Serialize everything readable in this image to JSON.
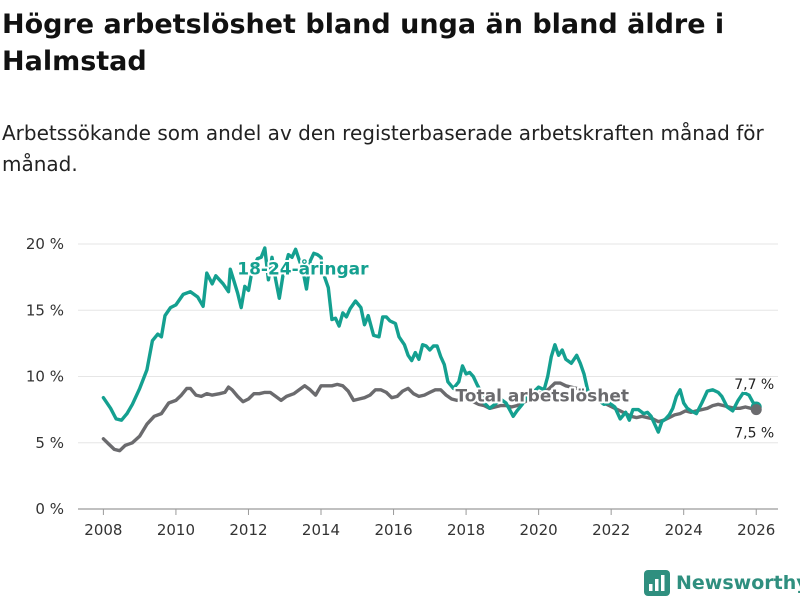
{
  "title": "Högre arbetslöshet bland unga än bland äldre i Halmstad",
  "subtitle": "Arbetssökande som andel av den registerbaserade arbetskraften månad för månad.",
  "brand": {
    "name": "Newsworthy",
    "icon": "bar-chart-logo-icon"
  },
  "colors": {
    "youth": "#14a090",
    "total": "#6b6b6e",
    "brand": "#2f8f7f"
  },
  "chart_data": {
    "type": "line",
    "title": "Högre arbetslöshet bland unga än bland äldre i Halmstad",
    "xlabel": "",
    "ylabel": "",
    "xlim": [
      2007.3,
      2026.6
    ],
    "ylim": [
      0,
      20
    ],
    "x_ticks": [
      2008,
      2010,
      2012,
      2014,
      2016,
      2018,
      2020,
      2022,
      2024,
      2026
    ],
    "x_tick_labels": [
      "2008",
      "2010",
      "2012",
      "2014",
      "2016",
      "2018",
      "2020",
      "2022",
      "2024",
      "2026"
    ],
    "y_ticks": [
      0,
      5,
      10,
      15,
      20
    ],
    "y_tick_labels": [
      "0 %",
      "5 %",
      "10 %",
      "15 %",
      "20 %"
    ],
    "series": [
      {
        "name": "18-24-åringar",
        "label": "18-24-åringar",
        "color": "#14a090",
        "points": [
          [
            2008.0,
            8.4
          ],
          [
            2008.2,
            7.6
          ],
          [
            2008.35,
            6.8
          ],
          [
            2008.5,
            6.7
          ],
          [
            2008.65,
            7.2
          ],
          [
            2008.8,
            7.9
          ],
          [
            2009.0,
            9.1
          ],
          [
            2009.2,
            10.5
          ],
          [
            2009.35,
            12.7
          ],
          [
            2009.5,
            13.2
          ],
          [
            2009.6,
            13.0
          ],
          [
            2009.7,
            14.6
          ],
          [
            2009.85,
            15.2
          ],
          [
            2010.0,
            15.4
          ],
          [
            2010.2,
            16.2
          ],
          [
            2010.4,
            16.4
          ],
          [
            2010.6,
            16.0
          ],
          [
            2010.75,
            15.3
          ],
          [
            2010.85,
            17.8
          ],
          [
            2011.0,
            17.0
          ],
          [
            2011.1,
            17.6
          ],
          [
            2011.3,
            17.0
          ],
          [
            2011.45,
            16.4
          ],
          [
            2011.5,
            18.1
          ],
          [
            2011.6,
            17.2
          ],
          [
            2011.7,
            16.3
          ],
          [
            2011.8,
            15.2
          ],
          [
            2011.9,
            16.8
          ],
          [
            2012.0,
            16.5
          ],
          [
            2012.1,
            18.0
          ],
          [
            2012.25,
            18.9
          ],
          [
            2012.35,
            19.0
          ],
          [
            2012.45,
            19.7
          ],
          [
            2012.55,
            17.3
          ],
          [
            2012.65,
            19.0
          ],
          [
            2012.75,
            17.3
          ],
          [
            2012.85,
            15.9
          ],
          [
            2012.95,
            17.6
          ],
          [
            2013.1,
            19.2
          ],
          [
            2013.2,
            19.0
          ],
          [
            2013.3,
            19.6
          ],
          [
            2013.4,
            18.8
          ],
          [
            2013.5,
            18.0
          ],
          [
            2013.6,
            16.6
          ],
          [
            2013.7,
            18.7
          ],
          [
            2013.8,
            19.3
          ],
          [
            2013.9,
            19.2
          ],
          [
            2014.0,
            19.0
          ],
          [
            2014.1,
            17.5
          ],
          [
            2014.2,
            16.7
          ],
          [
            2014.3,
            14.3
          ],
          [
            2014.4,
            14.4
          ],
          [
            2014.5,
            13.8
          ],
          [
            2014.6,
            14.8
          ],
          [
            2014.7,
            14.5
          ],
          [
            2014.8,
            15.1
          ],
          [
            2014.95,
            15.7
          ],
          [
            2015.1,
            15.2
          ],
          [
            2015.2,
            13.9
          ],
          [
            2015.3,
            14.6
          ],
          [
            2015.45,
            13.1
          ],
          [
            2015.6,
            13.0
          ],
          [
            2015.7,
            14.5
          ],
          [
            2015.8,
            14.5
          ],
          [
            2015.9,
            14.2
          ],
          [
            2016.05,
            14.0
          ],
          [
            2016.15,
            13.0
          ],
          [
            2016.3,
            12.4
          ],
          [
            2016.4,
            11.6
          ],
          [
            2016.5,
            11.2
          ],
          [
            2016.6,
            11.8
          ],
          [
            2016.7,
            11.3
          ],
          [
            2016.8,
            12.4
          ],
          [
            2016.9,
            12.3
          ],
          [
            2017.0,
            12.0
          ],
          [
            2017.1,
            12.3
          ],
          [
            2017.2,
            12.3
          ],
          [
            2017.3,
            11.5
          ],
          [
            2017.4,
            10.9
          ],
          [
            2017.5,
            9.6
          ],
          [
            2017.65,
            9.1
          ],
          [
            2017.8,
            9.6
          ],
          [
            2017.9,
            10.8
          ],
          [
            2018.0,
            10.2
          ],
          [
            2018.1,
            10.3
          ],
          [
            2018.2,
            10.0
          ],
          [
            2018.3,
            9.4
          ],
          [
            2018.4,
            8.9
          ],
          [
            2018.5,
            8.0
          ],
          [
            2018.65,
            7.6
          ],
          [
            2018.8,
            7.9
          ],
          [
            2018.95,
            8.3
          ],
          [
            2019.1,
            8.0
          ],
          [
            2019.2,
            7.5
          ],
          [
            2019.3,
            7.0
          ],
          [
            2019.4,
            7.4
          ],
          [
            2019.55,
            7.9
          ],
          [
            2019.7,
            8.6
          ],
          [
            2019.85,
            8.8
          ],
          [
            2020.0,
            9.2
          ],
          [
            2020.15,
            9.0
          ],
          [
            2020.25,
            10.0
          ],
          [
            2020.35,
            11.5
          ],
          [
            2020.45,
            12.4
          ],
          [
            2020.55,
            11.6
          ],
          [
            2020.65,
            12.0
          ],
          [
            2020.75,
            11.3
          ],
          [
            2020.9,
            11.0
          ],
          [
            2021.05,
            11.6
          ],
          [
            2021.15,
            11.0
          ],
          [
            2021.25,
            10.2
          ],
          [
            2021.35,
            9.0
          ],
          [
            2021.5,
            8.4
          ],
          [
            2021.65,
            8.2
          ],
          [
            2021.8,
            7.9
          ],
          [
            2021.95,
            8.0
          ],
          [
            2022.1,
            7.7
          ],
          [
            2022.25,
            6.8
          ],
          [
            2022.4,
            7.3
          ],
          [
            2022.5,
            6.7
          ],
          [
            2022.6,
            7.5
          ],
          [
            2022.75,
            7.5
          ],
          [
            2022.9,
            7.2
          ],
          [
            2023.0,
            7.3
          ],
          [
            2023.1,
            7.0
          ],
          [
            2023.2,
            6.4
          ],
          [
            2023.3,
            5.8
          ],
          [
            2023.4,
            6.6
          ],
          [
            2023.5,
            6.8
          ],
          [
            2023.6,
            7.1
          ],
          [
            2023.7,
            7.6
          ],
          [
            2023.8,
            8.5
          ],
          [
            2023.9,
            9.0
          ],
          [
            2024.0,
            8.0
          ],
          [
            2024.1,
            7.6
          ],
          [
            2024.2,
            7.4
          ],
          [
            2024.35,
            7.2
          ],
          [
            2024.5,
            8.0
          ],
          [
            2024.65,
            8.9
          ],
          [
            2024.8,
            9.0
          ],
          [
            2024.95,
            8.8
          ],
          [
            2025.05,
            8.5
          ],
          [
            2025.2,
            7.7
          ],
          [
            2025.35,
            7.4
          ],
          [
            2025.5,
            8.2
          ],
          [
            2025.65,
            8.8
          ],
          [
            2025.8,
            8.6
          ],
          [
            2025.9,
            8.1
          ],
          [
            2026.0,
            7.7
          ]
        ],
        "end_label": "7,7 %",
        "end_value": 7.7
      },
      {
        "name": "Total arbetslöshet",
        "label": "Total arbetslöshet",
        "color": "#6b6b6e",
        "points": [
          [
            2008.0,
            5.3
          ],
          [
            2008.15,
            4.9
          ],
          [
            2008.3,
            4.5
          ],
          [
            2008.45,
            4.4
          ],
          [
            2008.6,
            4.8
          ],
          [
            2008.8,
            5.0
          ],
          [
            2009.0,
            5.5
          ],
          [
            2009.2,
            6.4
          ],
          [
            2009.4,
            7.0
          ],
          [
            2009.6,
            7.2
          ],
          [
            2009.8,
            8.0
          ],
          [
            2010.0,
            8.2
          ],
          [
            2010.15,
            8.6
          ],
          [
            2010.3,
            9.1
          ],
          [
            2010.4,
            9.1
          ],
          [
            2010.55,
            8.6
          ],
          [
            2010.7,
            8.5
          ],
          [
            2010.85,
            8.7
          ],
          [
            2011.0,
            8.6
          ],
          [
            2011.2,
            8.7
          ],
          [
            2011.35,
            8.8
          ],
          [
            2011.45,
            9.2
          ],
          [
            2011.55,
            9.0
          ],
          [
            2011.7,
            8.5
          ],
          [
            2011.85,
            8.1
          ],
          [
            2012.0,
            8.3
          ],
          [
            2012.15,
            8.7
          ],
          [
            2012.3,
            8.7
          ],
          [
            2012.45,
            8.8
          ],
          [
            2012.6,
            8.8
          ],
          [
            2012.75,
            8.5
          ],
          [
            2012.9,
            8.2
          ],
          [
            2013.05,
            8.5
          ],
          [
            2013.25,
            8.7
          ],
          [
            2013.4,
            9.0
          ],
          [
            2013.55,
            9.3
          ],
          [
            2013.7,
            9.0
          ],
          [
            2013.85,
            8.6
          ],
          [
            2014.0,
            9.3
          ],
          [
            2014.15,
            9.3
          ],
          [
            2014.3,
            9.3
          ],
          [
            2014.45,
            9.4
          ],
          [
            2014.6,
            9.3
          ],
          [
            2014.75,
            8.9
          ],
          [
            2014.9,
            8.2
          ],
          [
            2015.05,
            8.3
          ],
          [
            2015.2,
            8.4
          ],
          [
            2015.35,
            8.6
          ],
          [
            2015.5,
            9.0
          ],
          [
            2015.65,
            9.0
          ],
          [
            2015.8,
            8.8
          ],
          [
            2015.95,
            8.4
          ],
          [
            2016.1,
            8.5
          ],
          [
            2016.25,
            8.9
          ],
          [
            2016.4,
            9.1
          ],
          [
            2016.55,
            8.7
          ],
          [
            2016.7,
            8.5
          ],
          [
            2016.85,
            8.6
          ],
          [
            2017.0,
            8.8
          ],
          [
            2017.15,
            9.0
          ],
          [
            2017.3,
            9.0
          ],
          [
            2017.45,
            8.6
          ],
          [
            2017.6,
            8.3
          ],
          [
            2017.75,
            8.2
          ],
          [
            2017.9,
            8.3
          ],
          [
            2018.05,
            8.3
          ],
          [
            2018.2,
            8.1
          ],
          [
            2018.35,
            7.9
          ],
          [
            2018.5,
            7.8
          ],
          [
            2018.65,
            7.6
          ],
          [
            2018.8,
            7.7
          ],
          [
            2018.95,
            7.8
          ],
          [
            2019.1,
            7.8
          ],
          [
            2019.25,
            7.7
          ],
          [
            2019.4,
            7.8
          ],
          [
            2019.55,
            8.0
          ],
          [
            2019.7,
            8.2
          ],
          [
            2019.85,
            8.5
          ],
          [
            2020.0,
            8.7
          ],
          [
            2020.15,
            8.8
          ],
          [
            2020.3,
            9.1
          ],
          [
            2020.45,
            9.5
          ],
          [
            2020.6,
            9.5
          ],
          [
            2020.75,
            9.3
          ],
          [
            2020.9,
            9.2
          ],
          [
            2021.05,
            9.1
          ],
          [
            2021.2,
            9.0
          ],
          [
            2021.35,
            8.8
          ],
          [
            2021.5,
            8.5
          ],
          [
            2021.65,
            8.2
          ],
          [
            2021.8,
            8.0
          ],
          [
            2021.95,
            7.8
          ],
          [
            2022.1,
            7.6
          ],
          [
            2022.25,
            7.4
          ],
          [
            2022.4,
            7.2
          ],
          [
            2022.55,
            7.0
          ],
          [
            2022.7,
            6.9
          ],
          [
            2022.85,
            7.0
          ],
          [
            2023.0,
            6.9
          ],
          [
            2023.15,
            6.8
          ],
          [
            2023.3,
            6.6
          ],
          [
            2023.45,
            6.7
          ],
          [
            2023.6,
            6.9
          ],
          [
            2023.75,
            7.1
          ],
          [
            2023.9,
            7.2
          ],
          [
            2024.05,
            7.4
          ],
          [
            2024.2,
            7.3
          ],
          [
            2024.35,
            7.4
          ],
          [
            2024.5,
            7.5
          ],
          [
            2024.65,
            7.6
          ],
          [
            2024.8,
            7.8
          ],
          [
            2024.95,
            7.9
          ],
          [
            2025.1,
            7.8
          ],
          [
            2025.25,
            7.7
          ],
          [
            2025.4,
            7.6
          ],
          [
            2025.55,
            7.6
          ],
          [
            2025.7,
            7.7
          ],
          [
            2025.85,
            7.6
          ],
          [
            2026.0,
            7.5
          ]
        ],
        "end_label": "7,5 %",
        "end_value": 7.5
      }
    ],
    "annotations": [
      {
        "text": "18-24-åringar",
        "series": "18-24-åringar",
        "x": 2013.5,
        "y": 17.7
      },
      {
        "text": "Total arbetslöshet",
        "series": "Total arbetslöshet",
        "x": 2020.1,
        "y": 8.1
      }
    ]
  }
}
